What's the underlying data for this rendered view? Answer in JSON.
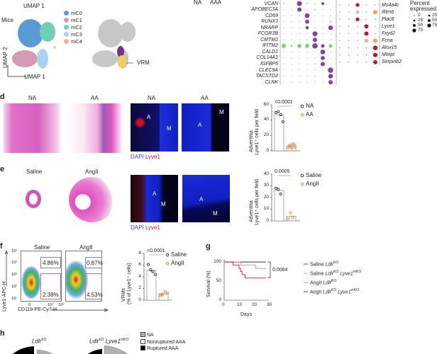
{
  "panel_c_top": {
    "umap_x": "UMAP 1",
    "group_labels": [
      "NA",
      "AAA"
    ]
  },
  "panel_c": {
    "species": "Mice",
    "umap_x": "UMAP 1",
    "umap_y": "UMAP 2",
    "clusters": [
      {
        "name": "mC0",
        "color": "#5b9bd5"
      },
      {
        "name": "mC1",
        "color": "#d49bb6"
      },
      {
        "name": "mC2",
        "color": "#6fd0b6"
      },
      {
        "name": "mC3",
        "color": "#a9d3f2"
      },
      {
        "name": "mC4",
        "color": "#f2ad9c"
      }
    ],
    "highlight_label": "VRM"
  },
  "dotplot_human": {
    "genes": [
      "VCAN",
      "APOBEC3A",
      "CD69",
      "RUNX3",
      "NRARP",
      "FCGR3B",
      "CMTM2",
      "IFITM2",
      "CALD1",
      "COL14A1",
      "IGFBP5",
      "CLEC9A",
      "TACSTD2",
      "CLNK"
    ],
    "pct": [
      [
        10,
        5,
        60,
        10,
        5,
        20,
        3
      ],
      [
        5,
        5,
        45,
        5,
        10,
        5,
        5
      ],
      [
        5,
        5,
        5,
        55,
        5,
        5,
        5
      ],
      [
        5,
        5,
        5,
        40,
        5,
        5,
        15
      ],
      [
        5,
        5,
        5,
        25,
        5,
        5,
        50
      ],
      [
        5,
        5,
        5,
        5,
        60,
        5,
        5
      ],
      [
        5,
        5,
        5,
        5,
        45,
        5,
        5
      ],
      [
        45,
        10,
        40,
        40,
        70,
        30,
        30
      ],
      [
        5,
        5,
        5,
        5,
        5,
        55,
        5
      ],
      [
        5,
        5,
        5,
        5,
        5,
        40,
        5
      ],
      [
        5,
        5,
        5,
        5,
        5,
        45,
        5
      ],
      [
        5,
        5,
        5,
        5,
        5,
        5,
        70
      ],
      [
        5,
        5,
        5,
        5,
        5,
        5,
        50
      ],
      [
        5,
        5,
        5,
        5,
        5,
        5,
        45
      ]
    ],
    "hi_color": "#7b2d8e",
    "lo_color": "#7cc36a"
  },
  "dotplot_mouse": {
    "genes": [
      "Ms4a4c",
      "Ifitm6",
      "Plac8",
      "Lyve1",
      "Fxyd2",
      "Fcna",
      "Alox15",
      "Mlxipl",
      "Serpinb2"
    ],
    "pct": [
      [
        3,
        3,
        40,
        3,
        3
      ],
      [
        3,
        3,
        30,
        3,
        55
      ],
      [
        3,
        3,
        40,
        3,
        3
      ],
      [
        3,
        3,
        3,
        50,
        3
      ],
      [
        3,
        3,
        3,
        50,
        3
      ],
      [
        3,
        3,
        3,
        40,
        55
      ],
      [
        3,
        3,
        3,
        3,
        60
      ],
      [
        3,
        3,
        3,
        3,
        55
      ],
      [
        3,
        3,
        3,
        3,
        50
      ]
    ],
    "hi_color": "#c8102e",
    "mid_color": "#f4a06a"
  },
  "legend_pct": {
    "title": "Percent expressed",
    "items": [
      "0",
      "25",
      "50",
      "75"
    ],
    "items2": [
      "25",
      "50",
      "75"
    ]
  },
  "panel_d": {
    "label": "d",
    "he_labels": [
      "NA",
      "AA"
    ],
    "if_labels": [
      "NA",
      "AA"
    ],
    "region_a": "A",
    "region_m": "M",
    "stain_dapi": "DAPI",
    "stain_lyve1": "Lyve1",
    "chart": {
      "type": "bar",
      "ylabel_1": "Adventitia",
      "ylabel_2": "Lyve1⁺ cells per field",
      "ylim": [
        0,
        60
      ],
      "yticks": [
        "0",
        "20",
        "40",
        "60"
      ],
      "pvalue": "<0.0001",
      "series": [
        {
          "name": "NA",
          "mean": 47,
          "points": [
            50,
            51,
            47,
            38
          ],
          "color": "#222222"
        },
        {
          "name": "AA",
          "mean": 6,
          "points": [
            4,
            6,
            9,
            5,
            7,
            3,
            8
          ],
          "color": "#f07a28"
        }
      ]
    }
  },
  "panel_e": {
    "label": "e",
    "he_labels": [
      "Saline",
      "AngII"
    ],
    "region_a": "A",
    "region_m": "M",
    "stain_dapi": "DAPI",
    "stain_lyve1": "Lyve1",
    "chart": {
      "type": "bar",
      "ylabel_1": "Adventitia",
      "ylabel_2": "Lyve1⁺ cells per field",
      "ylim": [
        0,
        40
      ],
      "yticks": [
        "0",
        "10",
        "20",
        "30",
        "40"
      ],
      "pvalue": "0.0005",
      "series": [
        {
          "name": "Saline",
          "mean": 26,
          "points": [
            28,
            27,
            23
          ],
          "color": "#222222"
        },
        {
          "name": "AngII",
          "mean": 4,
          "points": [
            2,
            7,
            3
          ],
          "color": "#f07a28"
        }
      ]
    }
  },
  "panel_f": {
    "label": "f",
    "flow_titles": [
      "Saline",
      "AngII"
    ],
    "gates_saline": [
      "4.86%",
      "2.38%"
    ],
    "gates_angii": [
      "0.87%",
      "4.53%"
    ],
    "y_axis": "Lyve1-APC-H",
    "x_axis": "CD11b-PE-Cy7-H",
    "y_ticks": [
      "10⁵",
      "10⁴",
      "10³",
      "10²",
      "10¹"
    ],
    "x_ticks": [
      "0",
      "10⁴",
      "10⁵"
    ],
    "chart": {
      "type": "bar",
      "ylabel_1": "VRMs",
      "ylabel_2": "(% of Lyve1⁺ cells)",
      "ylim": [
        0,
        8
      ],
      "yticks": [
        "0",
        "2",
        "4",
        "6",
        "8"
      ],
      "pvalue": "<0.0001",
      "series": [
        {
          "name": "Saline",
          "mean": 5.1,
          "points": [
            6.1,
            5.2,
            4.9,
            4.4
          ],
          "color": "#222222"
        },
        {
          "name": "AngII",
          "mean": 1.1,
          "points": [
            0.8,
            1.0,
            1.5,
            1.2,
            0.9
          ],
          "color": "#f07a28"
        }
      ]
    }
  },
  "panel_g": {
    "label": "g",
    "chart_data": {
      "type": "line",
      "xlabel": "Days",
      "ylabel": "Survival (%)",
      "xlim": [
        0,
        30
      ],
      "ylim": [
        0,
        100
      ],
      "xticks": [
        "0",
        "10",
        "20",
        "30"
      ],
      "yticks": [
        "0",
        "50",
        "100"
      ],
      "pvalue": "0.0064",
      "series": [
        {
          "name": "Saline LdlrKO",
          "color": "#555555",
          "steps": [
            [
              0,
              100
            ],
            [
              28,
              100
            ]
          ]
        },
        {
          "name": "Saline LdlrKO Lyve1mKO",
          "color": "#9bd39b",
          "steps": [
            [
              0,
              100
            ],
            [
              28,
              100
            ]
          ]
        },
        {
          "name": "AngII LdlrKO",
          "color": "#c27fe0",
          "steps": [
            [
              0,
              100
            ],
            [
              11,
              100
            ],
            [
              11,
              92
            ],
            [
              21,
              92
            ],
            [
              21,
              83
            ],
            [
              28,
              83
            ]
          ]
        },
        {
          "name": "AngII LdlrKO Lyve1mKO",
          "color": "#e8141a",
          "steps": [
            [
              0,
              100
            ],
            [
              6,
              100
            ],
            [
              6,
              92
            ],
            [
              10,
              92
            ],
            [
              10,
              83
            ],
            [
              11,
              83
            ],
            [
              11,
              75
            ],
            [
              12,
              75
            ],
            [
              12,
              67
            ],
            [
              14,
              67
            ],
            [
              14,
              58
            ],
            [
              28,
              58
            ]
          ]
        }
      ]
    },
    "legend": [
      {
        "a": "Saline ",
        "b": "Ldlr",
        "c": "KO",
        "d": "",
        "e": ""
      },
      {
        "a": "Saline ",
        "b": "Ldlr",
        "c": "KO",
        "d": " Lyve1",
        "e": "mKO"
      },
      {
        "a": "AngII ",
        "b": "Ldlr",
        "c": "KO",
        "d": "",
        "e": ""
      },
      {
        "a": "AngII ",
        "b": "Ldlr",
        "c": "KO",
        "d": " Lyve1",
        "e": "mKO"
      }
    ]
  },
  "panel_h": {
    "label": "h",
    "pie_titles": [
      {
        "b": "Ldlr",
        "c": "KO",
        "d": "",
        "e": ""
      },
      {
        "b": "Ldlr",
        "c": "KO",
        "d": " Lyve1",
        "e": "mKO"
      }
    ],
    "legend": [
      "NA",
      "Nonruptured AAA",
      "Ruptured AAA"
    ],
    "colors": [
      "#b0b0b0",
      "#ffffff",
      "#000000"
    ]
  }
}
